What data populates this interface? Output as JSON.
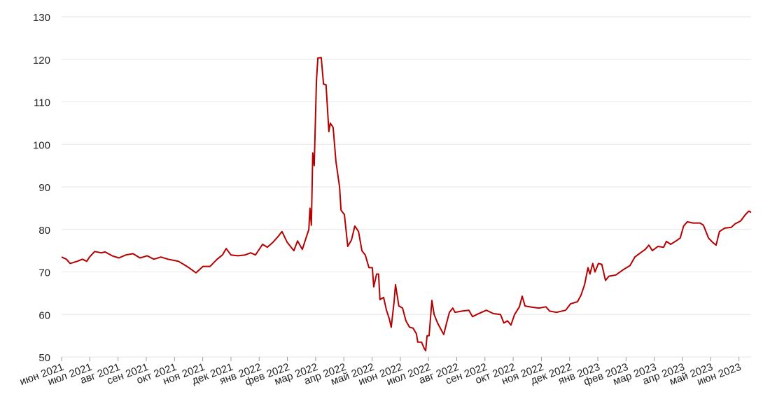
{
  "chart_data": {
    "type": "line",
    "color": "#b40000",
    "grid": true,
    "xlim": [
      0,
      24.43
    ],
    "ylim": [
      50,
      130
    ],
    "yticks": [
      50,
      60,
      70,
      80,
      90,
      100,
      110,
      120,
      130
    ],
    "xticks": [
      {
        "value": 0,
        "label": "июн 2021"
      },
      {
        "value": 1,
        "label": "июл 2021"
      },
      {
        "value": 2,
        "label": "авг 2021"
      },
      {
        "value": 3,
        "label": "сен 2021"
      },
      {
        "value": 4,
        "label": "окт 2021"
      },
      {
        "value": 5,
        "label": "ноя 2021"
      },
      {
        "value": 6,
        "label": "дек 2021"
      },
      {
        "value": 7,
        "label": "янв 2022"
      },
      {
        "value": 8,
        "label": "фев 2022"
      },
      {
        "value": 9,
        "label": "мар 2022"
      },
      {
        "value": 10,
        "label": "апр 2022"
      },
      {
        "value": 11,
        "label": "май 2022"
      },
      {
        "value": 12,
        "label": "июн 2022"
      },
      {
        "value": 13,
        "label": "июл 2022"
      },
      {
        "value": 14,
        "label": "авг 2022"
      },
      {
        "value": 15,
        "label": "сен 2022"
      },
      {
        "value": 16,
        "label": "окт 2022"
      },
      {
        "value": 17,
        "label": "ноя 2022"
      },
      {
        "value": 18,
        "label": "дек 2022"
      },
      {
        "value": 19,
        "label": "янв 2023"
      },
      {
        "value": 20,
        "label": "фев 2023"
      },
      {
        "value": 21,
        "label": "мар 2023"
      },
      {
        "value": 22,
        "label": "апр 2023"
      },
      {
        "value": 23,
        "label": "май 2023"
      },
      {
        "value": 24,
        "label": "июн 2023"
      }
    ],
    "x": [
      0,
      0.17,
      0.3,
      0.55,
      0.74,
      0.89,
      0.99,
      1.17,
      1.41,
      1.54,
      1.79,
      2.03,
      2.28,
      2.53,
      2.78,
      3.03,
      3.27,
      3.52,
      3.77,
      4.14,
      4.32,
      4.51,
      4.76,
      5.01,
      5.26,
      5.51,
      5.7,
      5.83,
      6,
      6.25,
      6.5,
      6.7,
      6.87,
      7.12,
      7.29,
      7.49,
      7.69,
      7.81,
      7.99,
      8.23,
      8.36,
      8.53,
      8.66,
      8.76,
      8.8,
      8.85,
      8.9,
      8.95,
      9.03,
      9.08,
      9.2,
      9.28,
      9.37,
      9.47,
      9.52,
      9.62,
      9.72,
      9.85,
      9.9,
      10.02,
      10.14,
      10.27,
      10.39,
      10.52,
      10.64,
      10.76,
      10.89,
      11.01,
      11.06,
      11.16,
      11.23,
      11.28,
      11.41,
      11.51,
      11.61,
      11.68,
      11.78,
      11.83,
      11.95,
      12.08,
      12.2,
      12.33,
      12.45,
      12.57,
      12.62,
      12.75,
      12.85,
      12.9,
      12.95,
      13.02,
      13.12,
      13.2,
      13.32,
      13.44,
      13.54,
      13.64,
      13.74,
      13.86,
      13.94,
      14.19,
      14.43,
      14.56,
      14.81,
      15.05,
      15.3,
      15.55,
      15.67,
      15.8,
      15.92,
      16.05,
      16.22,
      16.32,
      16.42,
      16.67,
      16.91,
      17.16,
      17.29,
      17.53,
      17.86,
      18.03,
      18.28,
      18.4,
      18.53,
      18.65,
      18.72,
      18.82,
      18.9,
      19.02,
      19.14,
      19.27,
      19.39,
      19.64,
      19.89,
      20.14,
      20.31,
      20.51,
      20.68,
      20.81,
      20.93,
      21.13,
      21.33,
      21.43,
      21.58,
      21.77,
      21.92,
      22.04,
      22.17,
      22.37,
      22.62,
      22.74,
      22.92,
      23.06,
      23.19,
      23.31,
      23.49,
      23.73,
      23.86,
      24.06,
      24.23,
      24.35,
      24.43
    ],
    "values": [
      73.5,
      73,
      72,
      72.5,
      73,
      72.5,
      73.5,
      74.8,
      74.5,
      74.7,
      73.8,
      73.3,
      74,
      74.3,
      73.3,
      73.8,
      73,
      73.5,
      73,
      72.5,
      71.8,
      71,
      69.8,
      71.3,
      71.3,
      73,
      74,
      75.5,
      74,
      73.8,
      74,
      74.5,
      74,
      76.5,
      75.8,
      77,
      78.5,
      79.5,
      77,
      75,
      77.3,
      75.3,
      78,
      80,
      85,
      81,
      98,
      95,
      115,
      120.3,
      120.4,
      114.2,
      114,
      103,
      105,
      104,
      96,
      90,
      84.5,
      83.5,
      76,
      77.5,
      80.8,
      79.5,
      75,
      74,
      71,
      71,
      66.5,
      69.5,
      69.5,
      63.5,
      64,
      61,
      59,
      57,
      63,
      67,
      62,
      61.5,
      58.5,
      57,
      56.8,
      55.5,
      53.5,
      53.5,
      52,
      51.5,
      55,
      55,
      63.3,
      60,
      58,
      56.5,
      55.3,
      58,
      60.5,
      61.5,
      60.5,
      60.8,
      61,
      59.5,
      60.3,
      61,
      60.2,
      60,
      58,
      58.5,
      57.5,
      60,
      61.8,
      64.3,
      62,
      61.7,
      61.5,
      61.8,
      60.8,
      60.5,
      61,
      62.5,
      63,
      64.5,
      67,
      71,
      69.5,
      72,
      70,
      72,
      71.8,
      68,
      69,
      69.3,
      70.5,
      71.5,
      73.5,
      74.5,
      75.3,
      76.3,
      75,
      76,
      75.8,
      77.2,
      76.5,
      77.3,
      78,
      80.8,
      81.8,
      81.5,
      81.5,
      81,
      78,
      77,
      76.3,
      79.5,
      80.3,
      80.5,
      81.3,
      82,
      83.5,
      84.3,
      84
    ]
  }
}
